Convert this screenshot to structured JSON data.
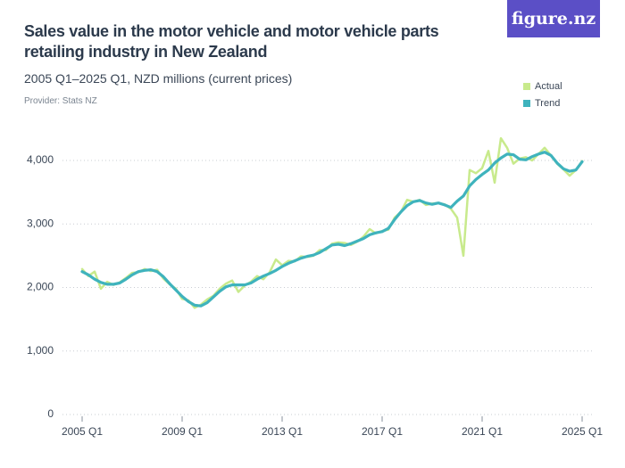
{
  "logo": "figure.nz",
  "chart_data": {
    "type": "line",
    "title": "Sales value in the motor vehicle and motor vehicle parts retailing industry in New Zealand",
    "subtitle": "2005 Q1–2025 Q1, NZD millions (current prices)",
    "provider": "Provider: Stats NZ",
    "categories": [
      "2005 Q1",
      null,
      null,
      null,
      null,
      null,
      null,
      null,
      null,
      null,
      null,
      null,
      null,
      null,
      null,
      null,
      "2009 Q1",
      null,
      null,
      null,
      null,
      null,
      null,
      null,
      null,
      null,
      null,
      null,
      null,
      null,
      null,
      null,
      "2013 Q1",
      null,
      null,
      null,
      null,
      null,
      null,
      null,
      null,
      null,
      null,
      null,
      null,
      null,
      null,
      null,
      "2017 Q1",
      null,
      null,
      null,
      null,
      null,
      null,
      null,
      null,
      null,
      null,
      null,
      null,
      null,
      null,
      null,
      "2021 Q1",
      null,
      null,
      null,
      null,
      null,
      null,
      null,
      null,
      null,
      null,
      null,
      null,
      null,
      null,
      null,
      "2025 Q1"
    ],
    "series": [
      {
        "name": "Actual",
        "color": "#c8ea8c",
        "values": [
          2290,
          2180,
          2250,
          1980,
          2090,
          2040,
          2080,
          2150,
          2230,
          2240,
          2290,
          2260,
          2280,
          2140,
          2050,
          1980,
          1820,
          1800,
          1680,
          1730,
          1810,
          1870,
          1980,
          2060,
          2110,
          1930,
          2030,
          2090,
          2180,
          2130,
          2240,
          2440,
          2350,
          2420,
          2410,
          2490,
          2480,
          2500,
          2590,
          2590,
          2690,
          2710,
          2700,
          2670,
          2720,
          2800,
          2920,
          2850,
          2890,
          2910,
          3100,
          3190,
          3380,
          3350,
          3380,
          3300,
          3320,
          3330,
          3310,
          3240,
          3100,
          2500,
          3850,
          3800,
          3880,
          4150,
          3650,
          4350,
          4200,
          3950,
          4030,
          4050,
          4000,
          4100,
          4200,
          4080,
          3950,
          3860,
          3760,
          3850,
          3990
        ]
      },
      {
        "name": "Trend",
        "color": "#3fb3bd",
        "values": [
          2250,
          2200,
          2130,
          2080,
          2050,
          2050,
          2070,
          2130,
          2200,
          2250,
          2270,
          2280,
          2250,
          2170,
          2060,
          1960,
          1860,
          1780,
          1720,
          1710,
          1760,
          1850,
          1940,
          2010,
          2040,
          2040,
          2040,
          2070,
          2130,
          2180,
          2220,
          2270,
          2330,
          2380,
          2420,
          2460,
          2490,
          2510,
          2550,
          2610,
          2670,
          2680,
          2660,
          2690,
          2730,
          2770,
          2830,
          2860,
          2880,
          2930,
          3070,
          3190,
          3290,
          3350,
          3370,
          3330,
          3310,
          3330,
          3300,
          3260,
          3360,
          3440,
          3600,
          3700,
          3780,
          3850,
          3960,
          4040,
          4100,
          4090,
          4020,
          4010,
          4060,
          4100,
          4130,
          4080,
          3960,
          3870,
          3830,
          3850,
          3980
        ]
      }
    ],
    "ylim": [
      0,
      4300
    ],
    "yticks": [
      0,
      {
        "value": 1000,
        "label": "1,000"
      },
      {
        "value": 2000,
        "label": "2,000"
      },
      {
        "value": 3000,
        "label": "3,000"
      },
      {
        "value": 4000,
        "label": "4,000"
      }
    ],
    "grid": true,
    "legend": "top-right"
  }
}
